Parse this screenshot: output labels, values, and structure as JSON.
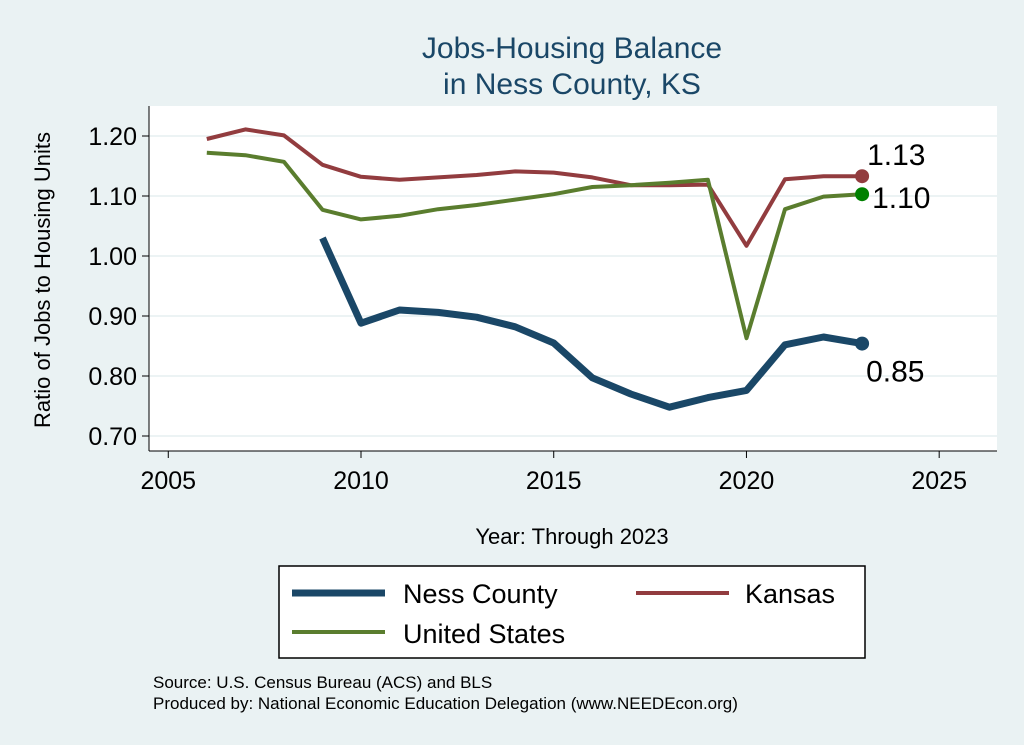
{
  "chart_data": {
    "type": "line",
    "title": [
      "Jobs-Housing Balance",
      "in Ness County, KS"
    ],
    "xlabel": "Year: Through 2023",
    "ylabel": "Ratio of Jobs to Housing Units",
    "xlim": [
      2004.5,
      2026.5
    ],
    "ylim": [
      0.675,
      1.25
    ],
    "xticks": [
      2005,
      2010,
      2015,
      2020,
      2025
    ],
    "yticks": [
      0.7,
      0.8,
      0.9,
      1.0,
      1.1,
      1.2
    ],
    "ytick_labels": [
      "0.70",
      "0.80",
      "0.90",
      "1.00",
      "1.10",
      "1.20"
    ],
    "grid": true,
    "series": [
      {
        "name": "Ness County",
        "color": "#1a4767",
        "x": [
          2009,
          2010,
          2011,
          2012,
          2013,
          2014,
          2015,
          2016,
          2017,
          2018,
          2019,
          2020,
          2021,
          2022,
          2023
        ],
        "values": [
          1.03,
          0.888,
          0.91,
          0.906,
          0.898,
          0.882,
          0.855,
          0.797,
          0.77,
          0.748,
          0.764,
          0.776,
          0.852,
          0.865,
          0.854
        ],
        "end_label": "0.85"
      },
      {
        "name": "Kansas",
        "color": "#923c3f",
        "x": [
          2006,
          2007,
          2008,
          2009,
          2010,
          2011,
          2012,
          2013,
          2014,
          2015,
          2016,
          2017,
          2018,
          2019,
          2020,
          2021,
          2022,
          2023
        ],
        "values": [
          1.195,
          1.211,
          1.201,
          1.152,
          1.132,
          1.127,
          1.131,
          1.135,
          1.141,
          1.139,
          1.131,
          1.118,
          1.118,
          1.119,
          1.017,
          1.128,
          1.133,
          1.133
        ],
        "end_label": "1.13"
      },
      {
        "name": "United States",
        "color": "#5a7d2e",
        "x": [
          2006,
          2007,
          2008,
          2009,
          2010,
          2011,
          2012,
          2013,
          2014,
          2015,
          2016,
          2017,
          2018,
          2019,
          2020,
          2021,
          2022,
          2023
        ],
        "values": [
          1.172,
          1.168,
          1.157,
          1.077,
          1.061,
          1.067,
          1.078,
          1.085,
          1.094,
          1.103,
          1.115,
          1.118,
          1.122,
          1.127,
          0.863,
          1.078,
          1.099,
          1.103
        ],
        "end_label": "1.10"
      }
    ],
    "legend": {
      "position": "bottom",
      "items": [
        "Ness County",
        "Kansas",
        "United States"
      ]
    },
    "source_lines": [
      "Source: U.S. Census Bureau (ACS) and BLS",
      "Produced by: National Economic Education Delegation (www.NEEDEcon.org)"
    ],
    "end_marker_colors": [
      "#1a4767",
      "#923c3f",
      "#008000"
    ]
  }
}
